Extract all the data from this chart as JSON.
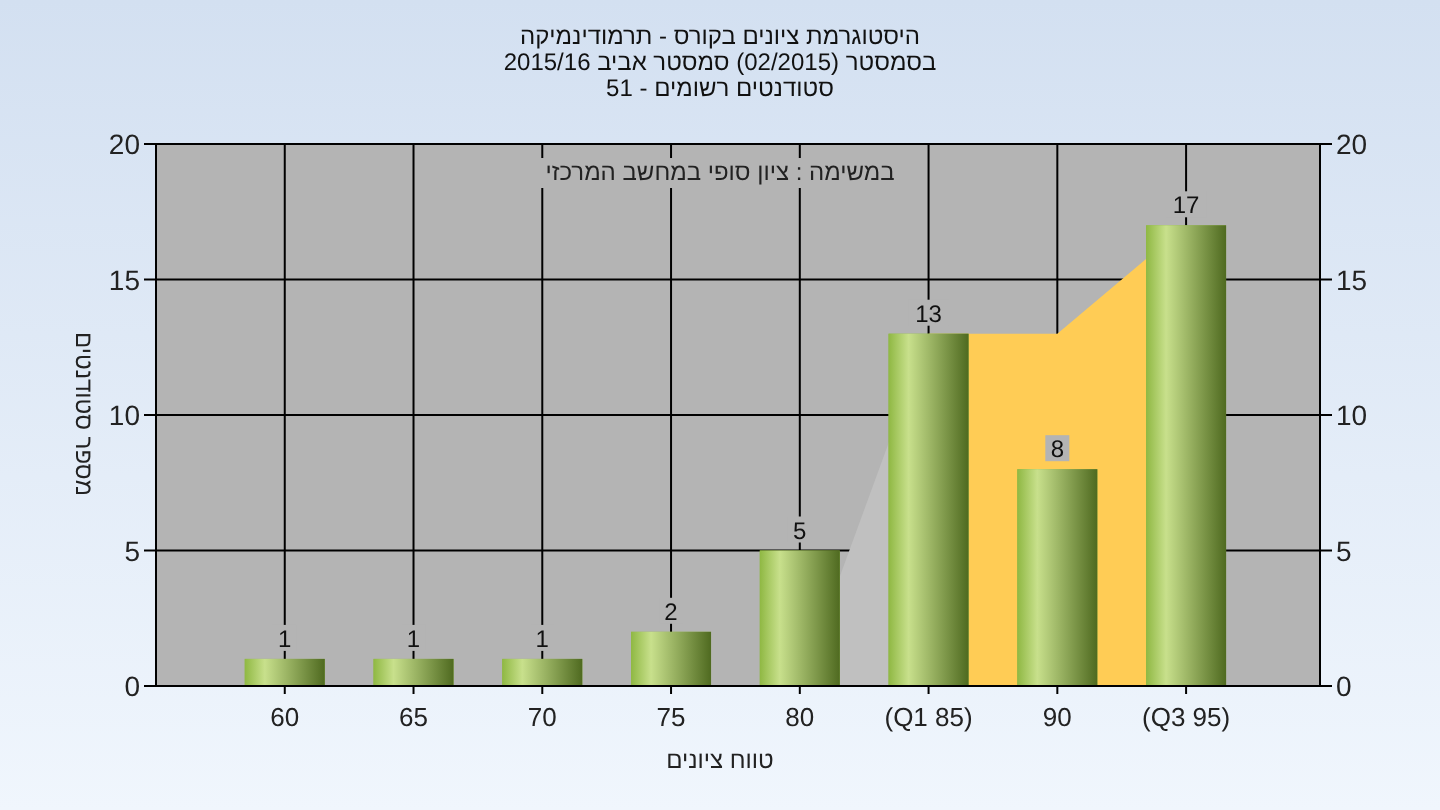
{
  "chart_data": {
    "type": "bar",
    "title": "היסטוגרמת ציונים בקורס - תרמודינמיקה",
    "subtitle": "בסמסטר  (02/2015)  סמסטר אביב 2015/16\nסטודנטים רשומים - 51",
    "annotations": [
      "במשימה : ציון סופי במחשב המרכזי"
    ],
    "xlabel": "טווח ציונים",
    "ylabel": "מספר סטודנטים",
    "categories": [
      "60",
      "65",
      "70",
      "75",
      "80",
      "(Q1 85)",
      "90",
      "(Q3 95)"
    ],
    "series": [
      {
        "type": "area",
        "color": "#c0c0c0",
        "values": [
          null,
          null,
          null,
          null,
          0,
          13,
          null,
          null
        ]
      },
      {
        "type": "area",
        "color": "#ffcc55",
        "values": [
          null,
          null,
          null,
          null,
          null,
          13,
          13,
          17
        ]
      },
      {
        "color": "#8fb843",
        "values": [
          1,
          1,
          1,
          2,
          5,
          13,
          8,
          17
        ],
        "value_labels": [
          "1",
          "1",
          "1",
          "2",
          "5",
          "13",
          "8",
          "17"
        ]
      }
    ],
    "ylim": [
      0,
      20
    ],
    "yticks": [
      0,
      5,
      10,
      15,
      20
    ],
    "y2lim": [
      0,
      20
    ],
    "y2ticks": [
      0,
      5,
      10,
      15,
      20
    ],
    "grid": true
  }
}
